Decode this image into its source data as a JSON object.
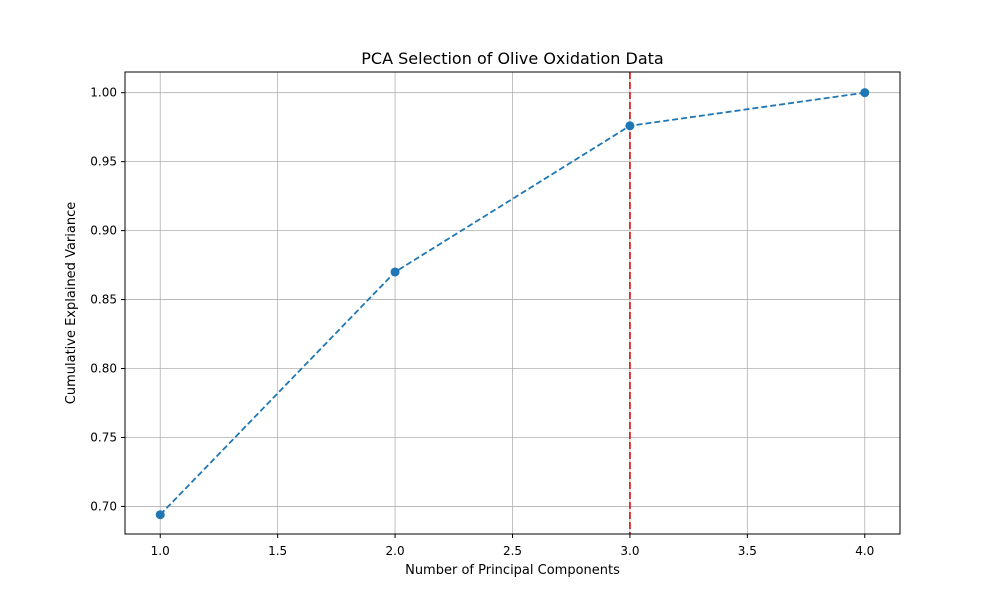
{
  "chart_data": {
    "type": "line",
    "title": "PCA Selection of Olive Oxidation Data",
    "xlabel": "Number of Principal Components",
    "ylabel": "Cumulative Explained Variance",
    "x": [
      1,
      2,
      3,
      4
    ],
    "series": [
      {
        "values": [
          0.694,
          0.87,
          0.976,
          1.0
        ],
        "color": "#1f77b4",
        "style": "dashed",
        "marker": "circle"
      }
    ],
    "reference_lines": [
      {
        "orientation": "vertical",
        "x": 3,
        "color": "#d62728",
        "style": "dashed"
      }
    ],
    "xlim": [
      0.85,
      4.15
    ],
    "ylim": [
      0.68,
      1.015
    ],
    "xticks": [
      "1.0",
      "1.5",
      "2.0",
      "2.5",
      "3.0",
      "3.5",
      "4.0"
    ],
    "yticks": [
      "0.70",
      "0.75",
      "0.80",
      "0.85",
      "0.90",
      "0.95",
      "1.00"
    ],
    "grid": true,
    "legend": "none"
  }
}
